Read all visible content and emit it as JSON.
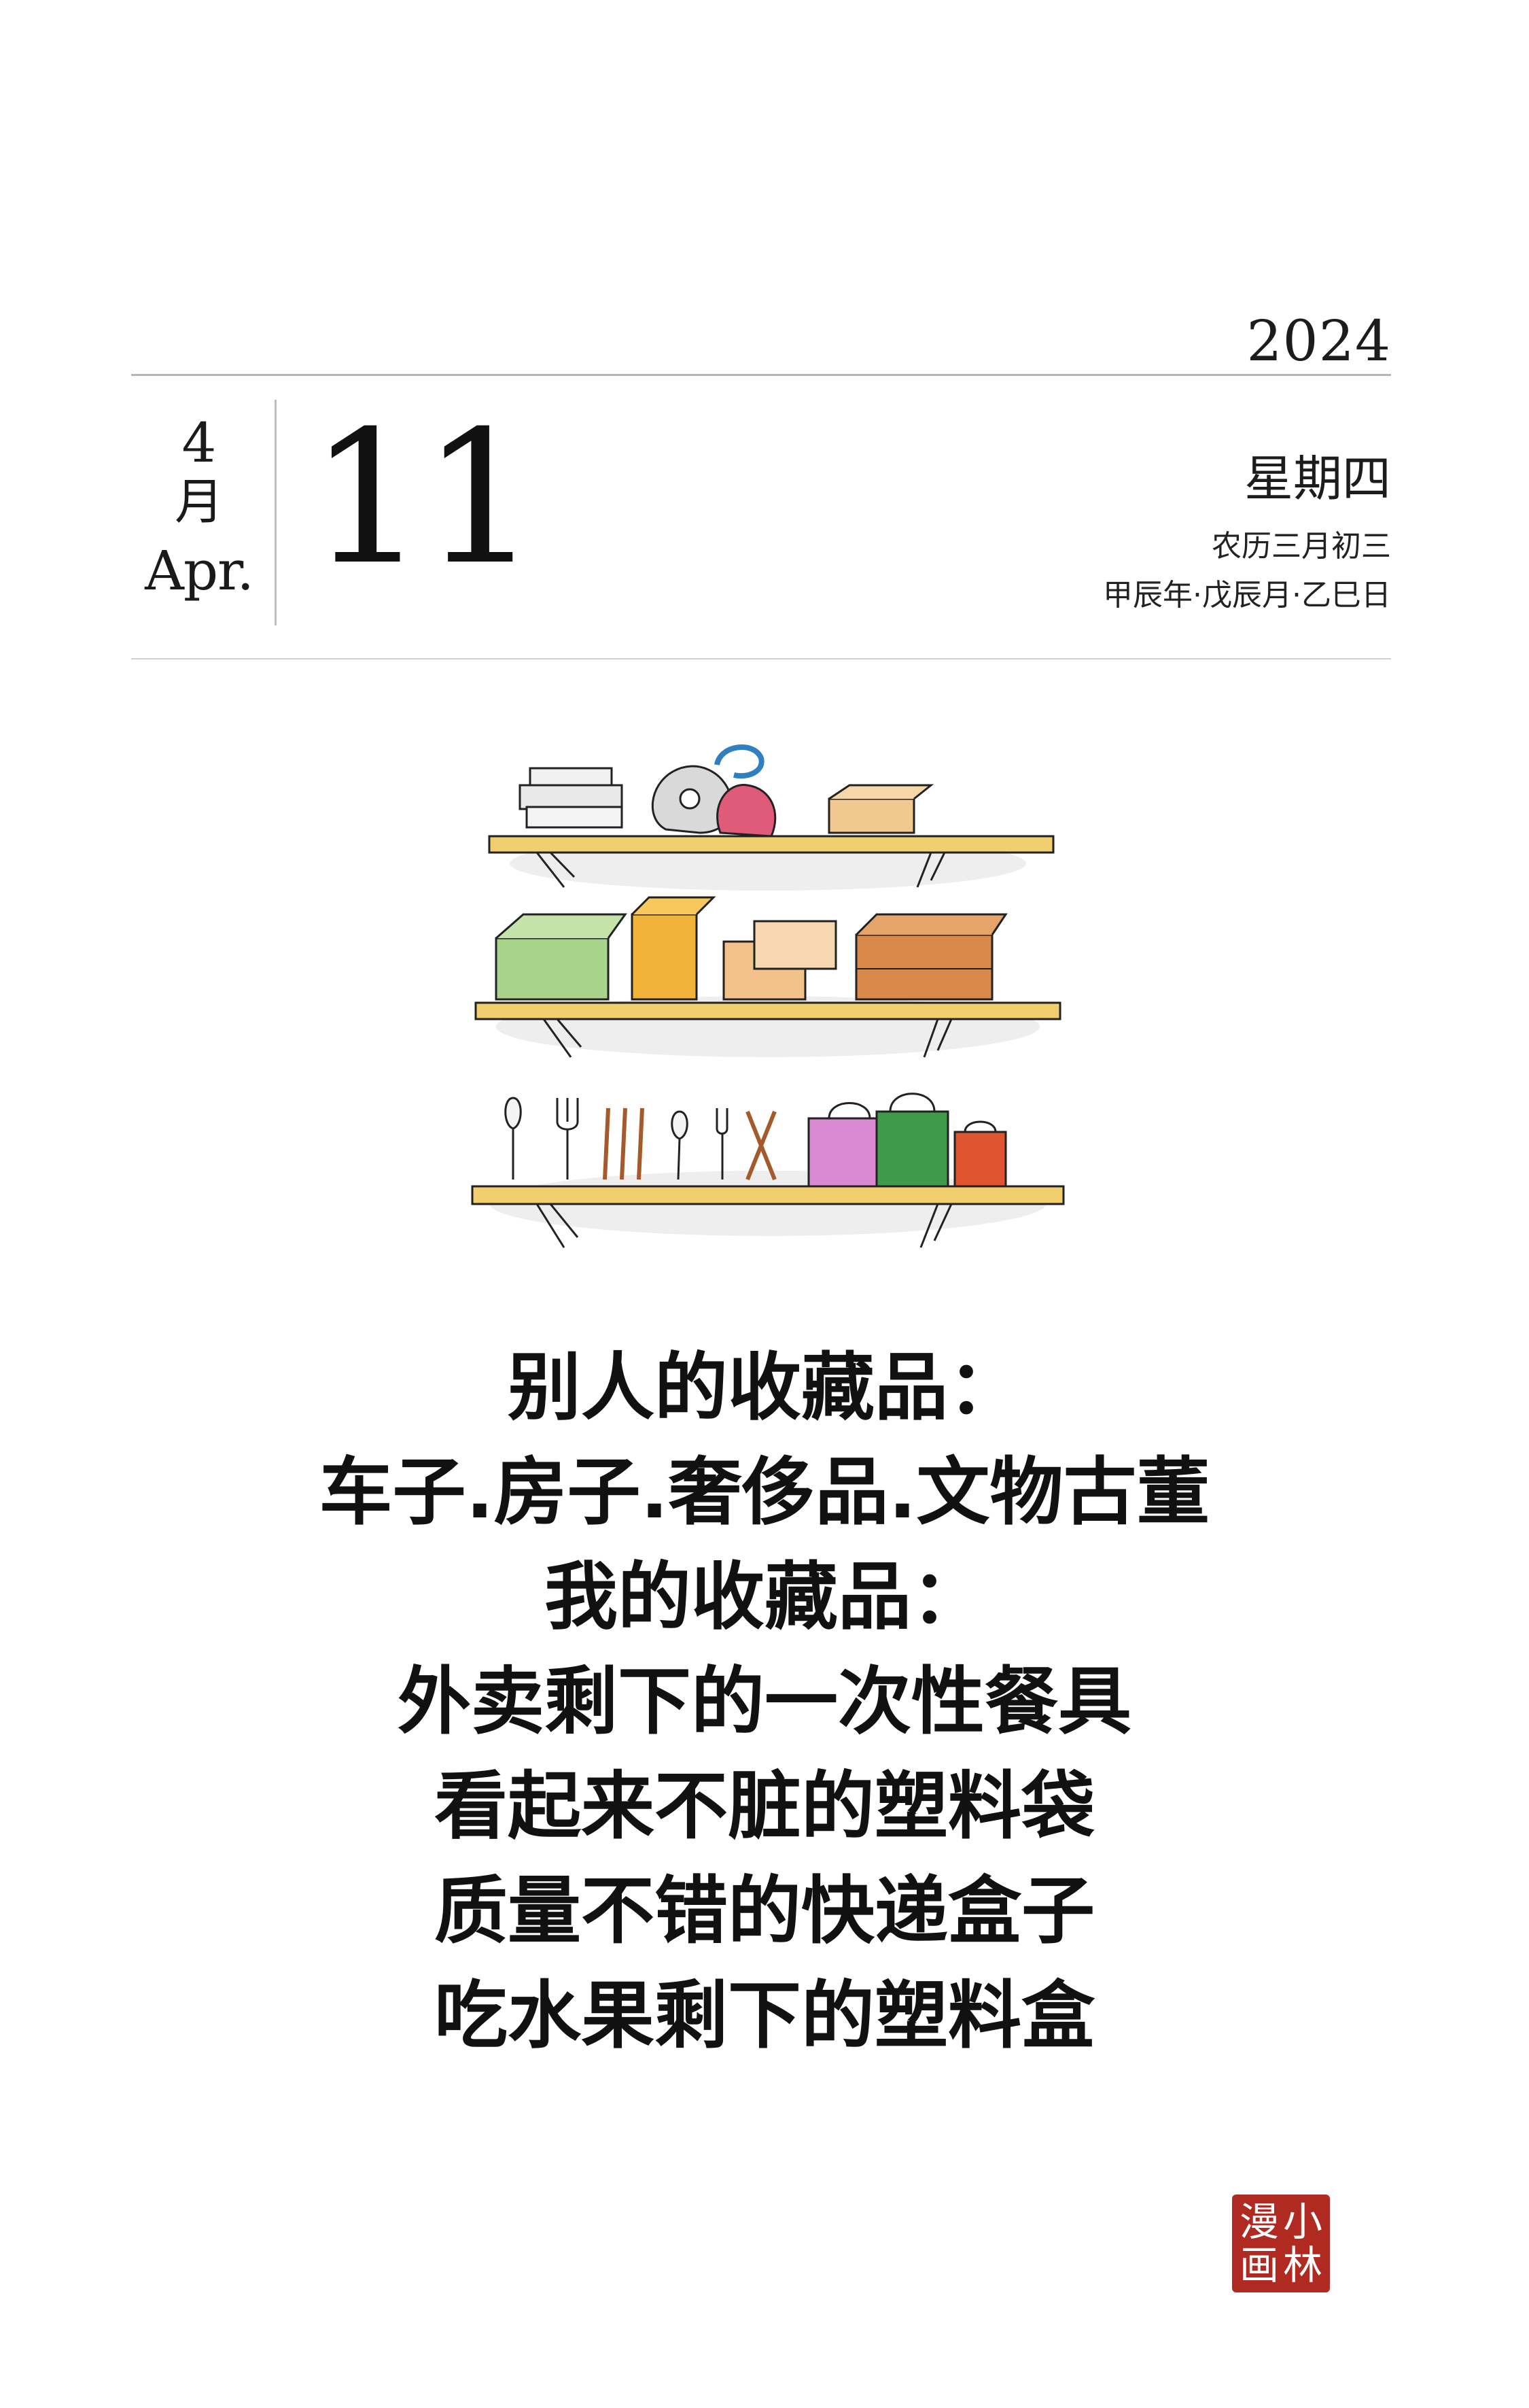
{
  "header": {
    "year": "2024",
    "month_number": "4",
    "month_cn": "月",
    "month_en": "Apr.",
    "day": "11",
    "weekday": "星期四",
    "lunar_date": "农历三月初三",
    "ganzhi": "甲辰年·戊辰月·乙巳日"
  },
  "illustration": {
    "icon": "shelf-collection-illustration"
  },
  "poem": {
    "lines": [
      "别人的收藏品：",
      "车子.房子.奢侈品.文物古董",
      "我的收藏品：",
      "外卖剩下的一次性餐具",
      "看起来不脏的塑料袋",
      "质量不错的快递盒子",
      "吃水果剩下的塑料盒"
    ]
  },
  "seal": {
    "text": [
      "小",
      "漫",
      "林",
      "画"
    ],
    "color": "#b12a22"
  }
}
